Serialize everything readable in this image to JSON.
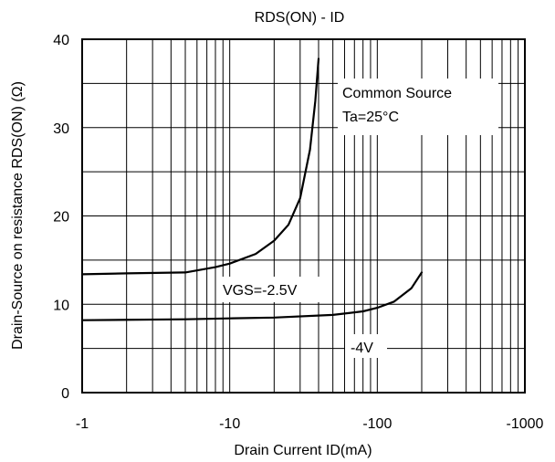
{
  "chart_data": {
    "type": "line",
    "title": "RDS(ON) - ID",
    "xlabel": "Drain Current ID(mA)",
    "ylabel": "Drain-Source on resistance RDS(ON) (Ω)",
    "x_scale": "log",
    "x_axis_magnitudes": [
      1,
      1000
    ],
    "x_ticks": [
      {
        "value": 1,
        "label": "-1"
      },
      {
        "value": 10,
        "label": "-10"
      },
      {
        "value": 100,
        "label": "-100"
      },
      {
        "value": 1000,
        "label": "-1000"
      }
    ],
    "ylim": [
      0,
      40
    ],
    "y_ticks": [
      {
        "value": 0,
        "label": "0"
      },
      {
        "value": 10,
        "label": "10"
      },
      {
        "value": 20,
        "label": "20"
      },
      {
        "value": 30,
        "label": "30"
      },
      {
        "value": 40,
        "label": "40"
      }
    ],
    "grid": true,
    "annotations": {
      "conditions_line1": "Common Source",
      "conditions_line2": "Ta=25°C"
    },
    "series": [
      {
        "name": "VGS=-2.5V",
        "x": [
          1,
          2,
          5,
          8,
          10,
          15,
          20,
          25,
          30,
          35,
          38,
          40
        ],
        "y": [
          13.4,
          13.5,
          13.6,
          14.2,
          14.6,
          15.7,
          17.2,
          19.0,
          22.0,
          27.5,
          33.0,
          37.8
        ]
      },
      {
        "name": "-4V",
        "x": [
          1,
          5,
          10,
          20,
          50,
          80,
          100,
          130,
          170,
          200
        ],
        "y": [
          8.2,
          8.3,
          8.4,
          8.5,
          8.8,
          9.2,
          9.6,
          10.3,
          11.8,
          13.6
        ]
      }
    ]
  }
}
